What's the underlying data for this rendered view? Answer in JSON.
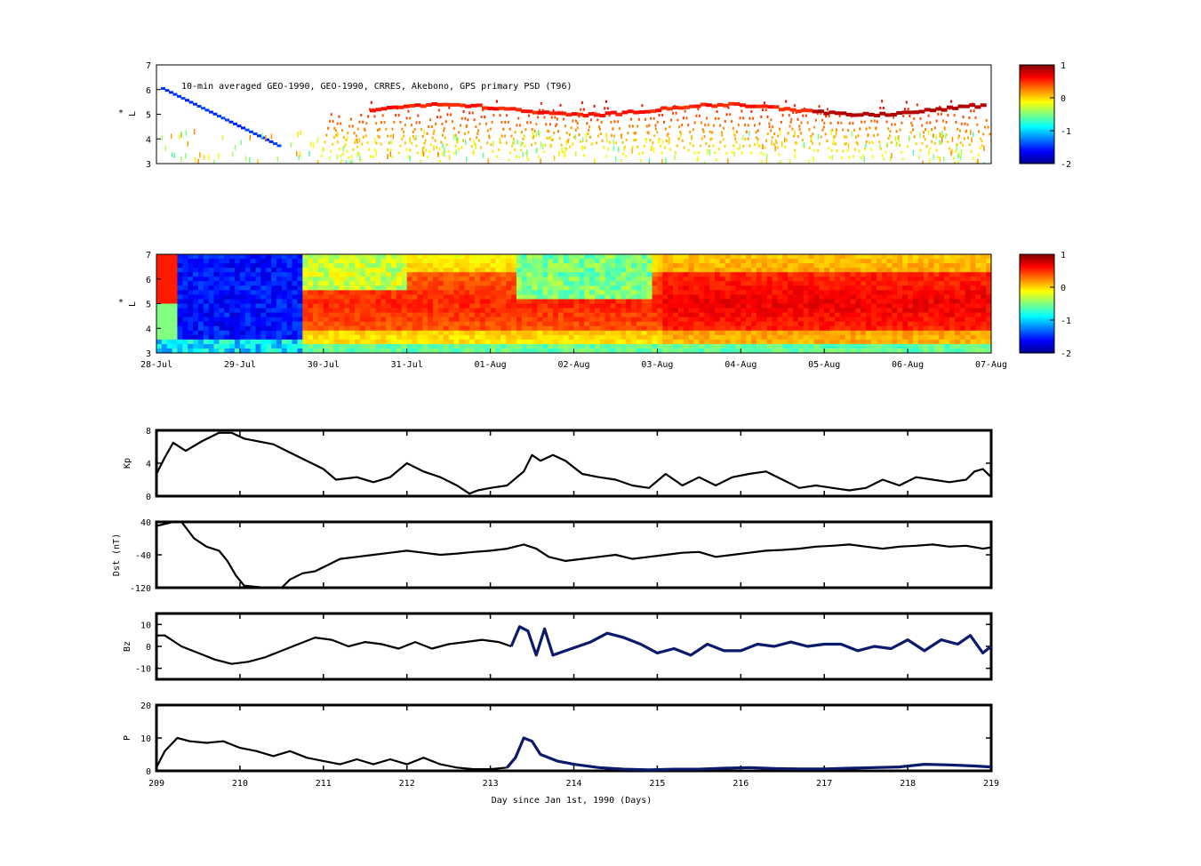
{
  "chart_data": [
    {
      "id": "psd-observed",
      "type": "heatmap",
      "annotation": "10-min averaged GEO-1990, GEO-1990, CRRES, Akebono, GPS  primary PSD (T96)",
      "ylabel": "L*",
      "ylim": [
        3,
        7
      ],
      "yticks": [
        "3",
        "4",
        "5",
        "6",
        "7"
      ],
      "colorbar": {
        "range": [
          -2,
          1
        ],
        "ticks": [
          "1",
          "0",
          "-1",
          "-2"
        ]
      }
    },
    {
      "id": "psd-model",
      "type": "heatmap",
      "ylabel": "L*",
      "ylim": [
        3,
        7
      ],
      "yticks": [
        "3",
        "4",
        "5",
        "6",
        "7"
      ],
      "xticks": [
        "28-Jul",
        "29-Jul",
        "30-Jul",
        "31-Jul",
        "01-Aug",
        "02-Aug",
        "03-Aug",
        "04-Aug",
        "05-Aug",
        "06-Aug",
        "07-Aug"
      ],
      "colorbar": {
        "range": [
          -2,
          1
        ],
        "ticks": [
          "1",
          "0",
          "-1",
          "-2"
        ]
      }
    },
    {
      "id": "kp",
      "type": "line",
      "ylabel": "Kp",
      "ylim": [
        0,
        8
      ],
      "yticks": [
        "0",
        "4",
        "8"
      ],
      "x": [
        209.0,
        209.1,
        209.2,
        209.35,
        209.55,
        209.75,
        209.9,
        210.05,
        210.4,
        210.6,
        210.8,
        211.0,
        211.15,
        211.4,
        211.6,
        211.8,
        212.0,
        212.2,
        212.4,
        212.6,
        212.75,
        212.85,
        213.0,
        213.2,
        213.4,
        213.5,
        213.6,
        213.75,
        213.9,
        214.1,
        214.3,
        214.5,
        214.7,
        214.9,
        215.1,
        215.3,
        215.5,
        215.7,
        215.9,
        216.1,
        216.3,
        216.5,
        216.7,
        216.9,
        217.1,
        217.3,
        217.5,
        217.7,
        217.9,
        218.1,
        218.3,
        218.5,
        218.7,
        218.8,
        218.9,
        219.0
      ],
      "series": [
        {
          "values": [
            2.7,
            4.7,
            6.5,
            5.5,
            6.7,
            7.7,
            7.7,
            7.0,
            6.3,
            5.3,
            4.3,
            3.3,
            2.0,
            2.3,
            1.7,
            2.3,
            4.0,
            3.0,
            2.3,
            1.3,
            0.3,
            0.7,
            1.0,
            1.3,
            3.0,
            5.0,
            4.3,
            5.0,
            4.3,
            2.7,
            2.3,
            2.0,
            1.3,
            1.0,
            2.7,
            1.3,
            2.3,
            1.3,
            2.3,
            2.7,
            3.0,
            2.0,
            1.0,
            1.3,
            1.0,
            0.7,
            1.0,
            2.0,
            1.3,
            2.3,
            2.0,
            1.7,
            2.0,
            3.0,
            3.3,
            2.3
          ]
        }
      ]
    },
    {
      "id": "dst",
      "type": "line",
      "ylabel": "Dst (nT)",
      "ylim": [
        -120,
        40
      ],
      "yticks": [
        "-120",
        "-40",
        "40"
      ],
      "x": [
        209.0,
        209.2,
        209.3,
        209.45,
        209.6,
        209.75,
        209.85,
        209.95,
        210.05,
        210.3,
        210.5,
        210.6,
        210.75,
        210.9,
        211.05,
        211.2,
        211.4,
        211.6,
        211.8,
        212.0,
        212.2,
        212.4,
        212.6,
        212.8,
        213.0,
        213.2,
        213.4,
        213.55,
        213.7,
        213.9,
        214.1,
        214.3,
        214.5,
        214.7,
        214.9,
        215.1,
        215.3,
        215.5,
        215.7,
        215.9,
        216.1,
        216.3,
        216.5,
        216.7,
        216.9,
        217.1,
        217.3,
        217.5,
        217.7,
        217.9,
        218.1,
        218.3,
        218.5,
        218.7,
        218.9,
        219.0
      ],
      "series": [
        {
          "values": [
            30,
            40,
            40,
            0,
            -20,
            -30,
            -55,
            -90,
            -115,
            -120,
            -120,
            -100,
            -85,
            -80,
            -65,
            -50,
            -45,
            -40,
            -35,
            -30,
            -35,
            -40,
            -37,
            -33,
            -30,
            -25,
            -15,
            -25,
            -45,
            -55,
            -50,
            -45,
            -40,
            -50,
            -45,
            -40,
            -35,
            -33,
            -45,
            -40,
            -35,
            -30,
            -28,
            -25,
            -20,
            -18,
            -15,
            -20,
            -25,
            -20,
            -18,
            -15,
            -20,
            -18,
            -25,
            -22
          ]
        }
      ]
    },
    {
      "id": "bz",
      "type": "line",
      "ylabel": "Bz",
      "ylim": [
        -15,
        15
      ],
      "yticks": [
        "-10",
        "0",
        "10"
      ],
      "x": [
        209.0,
        209.1,
        209.3,
        209.5,
        209.7,
        209.9,
        210.1,
        210.3,
        210.5,
        210.7,
        210.9,
        211.1,
        211.3,
        211.5,
        211.7,
        211.9,
        212.1,
        212.3,
        212.5,
        212.7,
        212.9,
        213.1,
        213.25,
        213.35,
        213.45,
        213.55,
        213.65,
        213.75,
        213.9,
        214.05,
        214.2,
        214.4,
        214.6,
        214.8,
        215.0,
        215.2,
        215.4,
        215.6,
        215.8,
        216.0,
        216.2,
        216.4,
        216.6,
        216.8,
        217.0,
        217.2,
        217.4,
        217.6,
        217.8,
        218.0,
        218.2,
        218.4,
        218.6,
        218.75,
        218.9,
        219.0
      ],
      "series": [
        {
          "values": [
            5,
            5,
            0,
            -3,
            -6,
            -8,
            -7,
            -5,
            -2,
            1,
            4,
            3,
            0,
            2,
            1,
            -1,
            2,
            -1,
            1,
            2,
            3,
            2,
            0,
            9,
            7,
            -4,
            8,
            -4,
            -2,
            0,
            2,
            6,
            4,
            1,
            -3,
            -1,
            -4,
            1,
            -2,
            -2,
            1,
            0,
            2,
            0,
            1,
            1,
            -2,
            0,
            -1,
            3,
            -2,
            3,
            1,
            5,
            -3,
            0
          ]
        }
      ]
    },
    {
      "id": "pdyn",
      "type": "line",
      "ylabel": "P",
      "ylim": [
        0,
        20
      ],
      "yticks": [
        "0",
        "10",
        "20"
      ],
      "xlabel": "Day since Jan 1st, 1990 (Days)",
      "xticks": [
        "209",
        "210",
        "211",
        "212",
        "213",
        "214",
        "215",
        "216",
        "217",
        "218",
        "219"
      ],
      "xlim": [
        209,
        219
      ],
      "x": [
        209.0,
        209.1,
        209.25,
        209.4,
        209.6,
        209.8,
        210.0,
        210.2,
        210.4,
        210.6,
        210.8,
        211.0,
        211.2,
        211.4,
        211.6,
        211.8,
        212.0,
        212.2,
        212.4,
        212.6,
        212.8,
        213.0,
        213.2,
        213.3,
        213.4,
        213.5,
        213.6,
        213.8,
        214.0,
        214.3,
        214.6,
        214.9,
        215.2,
        215.5,
        215.8,
        216.1,
        216.4,
        216.7,
        217.0,
        217.3,
        217.6,
        217.9,
        218.2,
        218.5,
        218.8,
        219.0
      ],
      "series": [
        {
          "values": [
            1,
            6,
            10,
            9,
            8.5,
            9,
            7,
            6,
            4.5,
            6,
            4,
            3,
            2,
            3.5,
            2,
            3.5,
            2,
            4,
            2,
            1,
            0.5,
            0.5,
            1,
            4,
            10,
            9,
            5,
            3,
            2,
            1,
            0.5,
            0.3,
            0.5,
            0.5,
            0.8,
            1,
            0.7,
            0.6,
            0.6,
            0.8,
            1,
            1.2,
            2,
            1.8,
            1.5,
            1.2
          ]
        }
      ]
    }
  ]
}
